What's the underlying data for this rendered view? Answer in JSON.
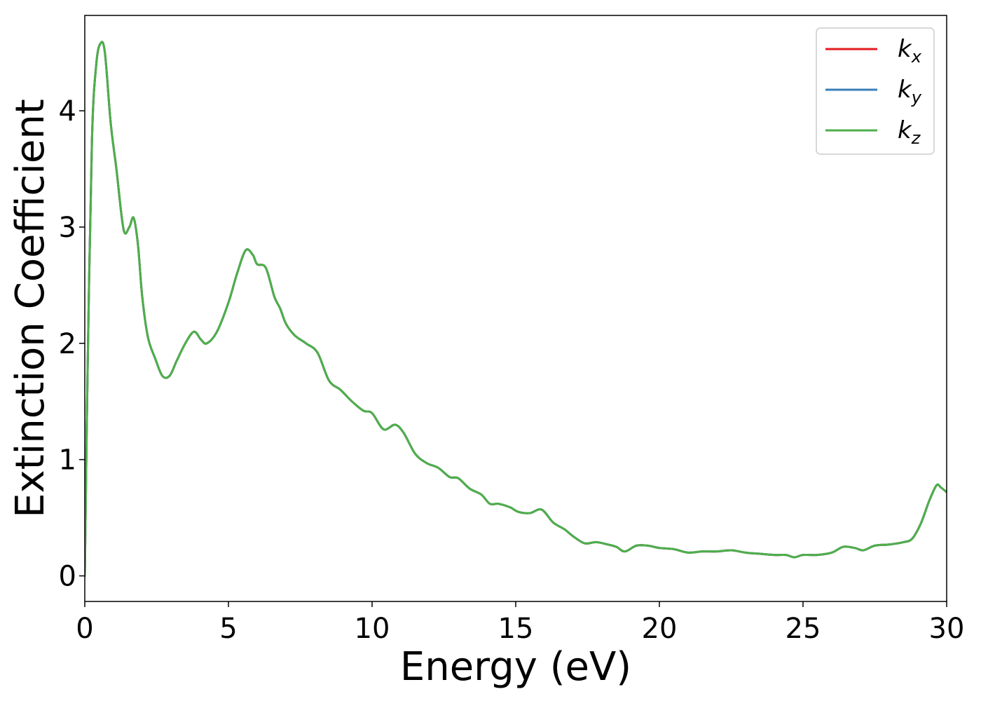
{
  "chart_data": {
    "type": "line",
    "xlabel": "Energy (eV)",
    "ylabel": "Extinction Coefficient",
    "xlim": [
      0,
      30
    ],
    "ylim": [
      -0.22,
      4.82
    ],
    "xticks": [
      0,
      5,
      10,
      15,
      20,
      25,
      30
    ],
    "yticks": [
      0,
      1,
      2,
      3,
      4
    ],
    "grid": false,
    "legend_position": "top-right",
    "series": [
      {
        "name": "k",
        "subscript": "x",
        "color": "#e41a1c"
      },
      {
        "name": "k",
        "subscript": "y",
        "color": "#377eb8"
      },
      {
        "name": "k",
        "subscript": "z",
        "color": "#4daf4a"
      }
    ],
    "x": [
      0,
      0.1,
      0.25,
      0.4,
      0.55,
      0.7,
      0.9,
      1.1,
      1.35,
      1.55,
      1.7,
      1.85,
      2.0,
      2.2,
      2.45,
      2.7,
      2.95,
      3.2,
      3.5,
      3.8,
      4.05,
      4.25,
      4.6,
      5.0,
      5.3,
      5.6,
      5.85,
      6.0,
      6.3,
      6.6,
      6.8,
      7.0,
      7.3,
      7.7,
      8.1,
      8.5,
      8.9,
      9.3,
      9.7,
      10.0,
      10.4,
      10.8,
      11.1,
      11.5,
      11.9,
      12.3,
      12.7,
      13.0,
      13.4,
      13.8,
      14.1,
      14.4,
      14.8,
      15.1,
      15.5,
      15.9,
      16.3,
      16.7,
      17.0,
      17.4,
      17.8,
      18.2,
      18.5,
      18.8,
      19.2,
      19.6,
      20.0,
      20.5,
      21.0,
      21.5,
      22.0,
      22.5,
      23.0,
      23.5,
      24.0,
      24.4,
      24.7,
      25.0,
      25.5,
      26.0,
      26.4,
      26.8,
      27.1,
      27.5,
      28.0,
      28.5,
      28.8,
      29.1,
      29.4,
      29.65,
      29.8,
      30.0
    ],
    "values": [
      0.0,
      1.8,
      3.75,
      4.4,
      4.58,
      4.5,
      3.9,
      3.5,
      2.98,
      3.0,
      3.08,
      2.85,
      2.4,
      2.05,
      1.87,
      1.72,
      1.72,
      1.85,
      2.0,
      2.1,
      2.03,
      2.0,
      2.1,
      2.35,
      2.6,
      2.8,
      2.76,
      2.68,
      2.65,
      2.4,
      2.3,
      2.17,
      2.07,
      2.0,
      1.92,
      1.68,
      1.6,
      1.5,
      1.42,
      1.4,
      1.26,
      1.3,
      1.23,
      1.05,
      0.97,
      0.93,
      0.85,
      0.84,
      0.75,
      0.7,
      0.62,
      0.62,
      0.59,
      0.55,
      0.54,
      0.57,
      0.46,
      0.4,
      0.34,
      0.28,
      0.29,
      0.27,
      0.25,
      0.21,
      0.26,
      0.26,
      0.24,
      0.23,
      0.2,
      0.21,
      0.21,
      0.22,
      0.2,
      0.19,
      0.18,
      0.18,
      0.16,
      0.18,
      0.18,
      0.2,
      0.25,
      0.24,
      0.22,
      0.26,
      0.27,
      0.29,
      0.32,
      0.45,
      0.65,
      0.78,
      0.76,
      0.72
    ]
  }
}
